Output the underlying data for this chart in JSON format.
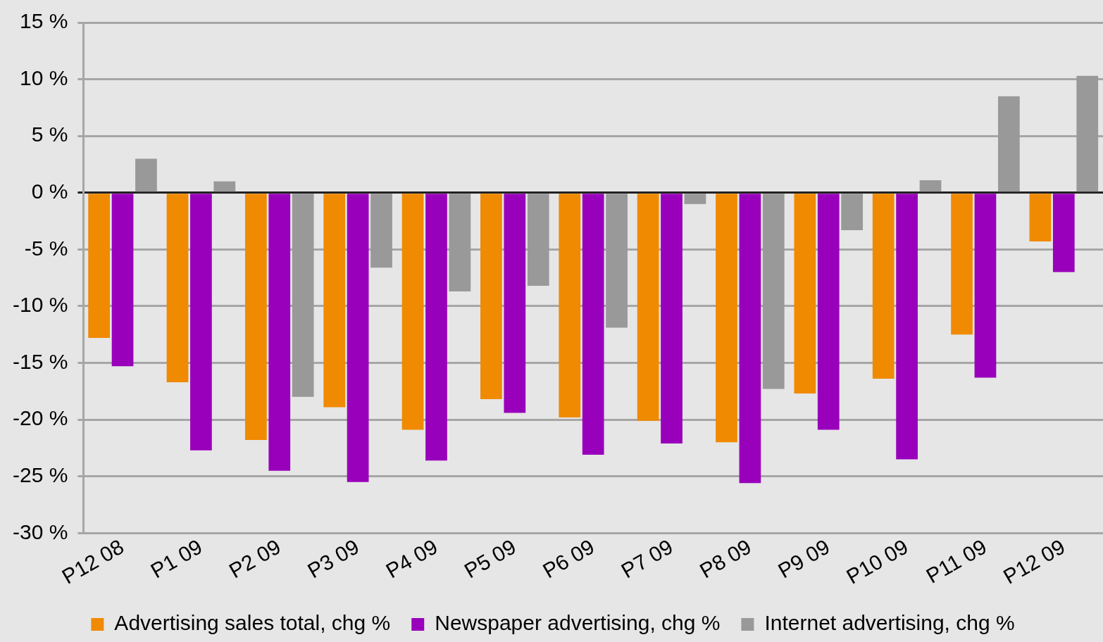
{
  "chart_data": {
    "type": "bar",
    "categories": [
      "P12 08",
      "P1 09",
      "P2 09",
      "P3 09",
      "P4 09",
      "P5 09",
      "P6 09",
      "P7 09",
      "P8 09",
      "P9 09",
      "P10 09",
      "P11 09",
      "P12 09"
    ],
    "series": [
      {
        "name": "Advertising sales total, chg %",
        "color": "#f08a00",
        "values": [
          -12.8,
          -16.7,
          -21.8,
          -18.9,
          -20.9,
          -18.2,
          -19.8,
          -20.1,
          -22.0,
          -17.7,
          -16.4,
          -12.5,
          -4.3
        ]
      },
      {
        "name": "Newspaper advertising, chg %",
        "color": "#9900bb",
        "values": [
          -15.3,
          -22.7,
          -24.5,
          -25.5,
          -23.6,
          -19.4,
          -23.1,
          -22.1,
          -25.6,
          -20.9,
          -23.5,
          -16.3,
          -7.0
        ]
      },
      {
        "name": "Internet advertising, chg %",
        "color": "#999999",
        "values": [
          3.0,
          1.0,
          -18.0,
          -6.6,
          -8.7,
          -8.2,
          -11.9,
          -1.0,
          -17.3,
          -3.3,
          1.1,
          8.5,
          10.3
        ]
      }
    ],
    "ylim": [
      -30,
      15
    ],
    "yticks": [
      {
        "value": -30,
        "label": "-30 %"
      },
      {
        "value": -25,
        "label": "-25 %"
      },
      {
        "value": -20,
        "label": "-20 %"
      },
      {
        "value": -15,
        "label": "-15 %"
      },
      {
        "value": -10,
        "label": "-10 %"
      },
      {
        "value": -5,
        "label": "-5 %"
      },
      {
        "value": 0,
        "label": "0 %"
      },
      {
        "value": 5,
        "label": "5 %"
      },
      {
        "value": 10,
        "label": "10 %"
      },
      {
        "value": 15,
        "label": "15 %"
      }
    ],
    "grid": "y",
    "legend": "bottom"
  }
}
